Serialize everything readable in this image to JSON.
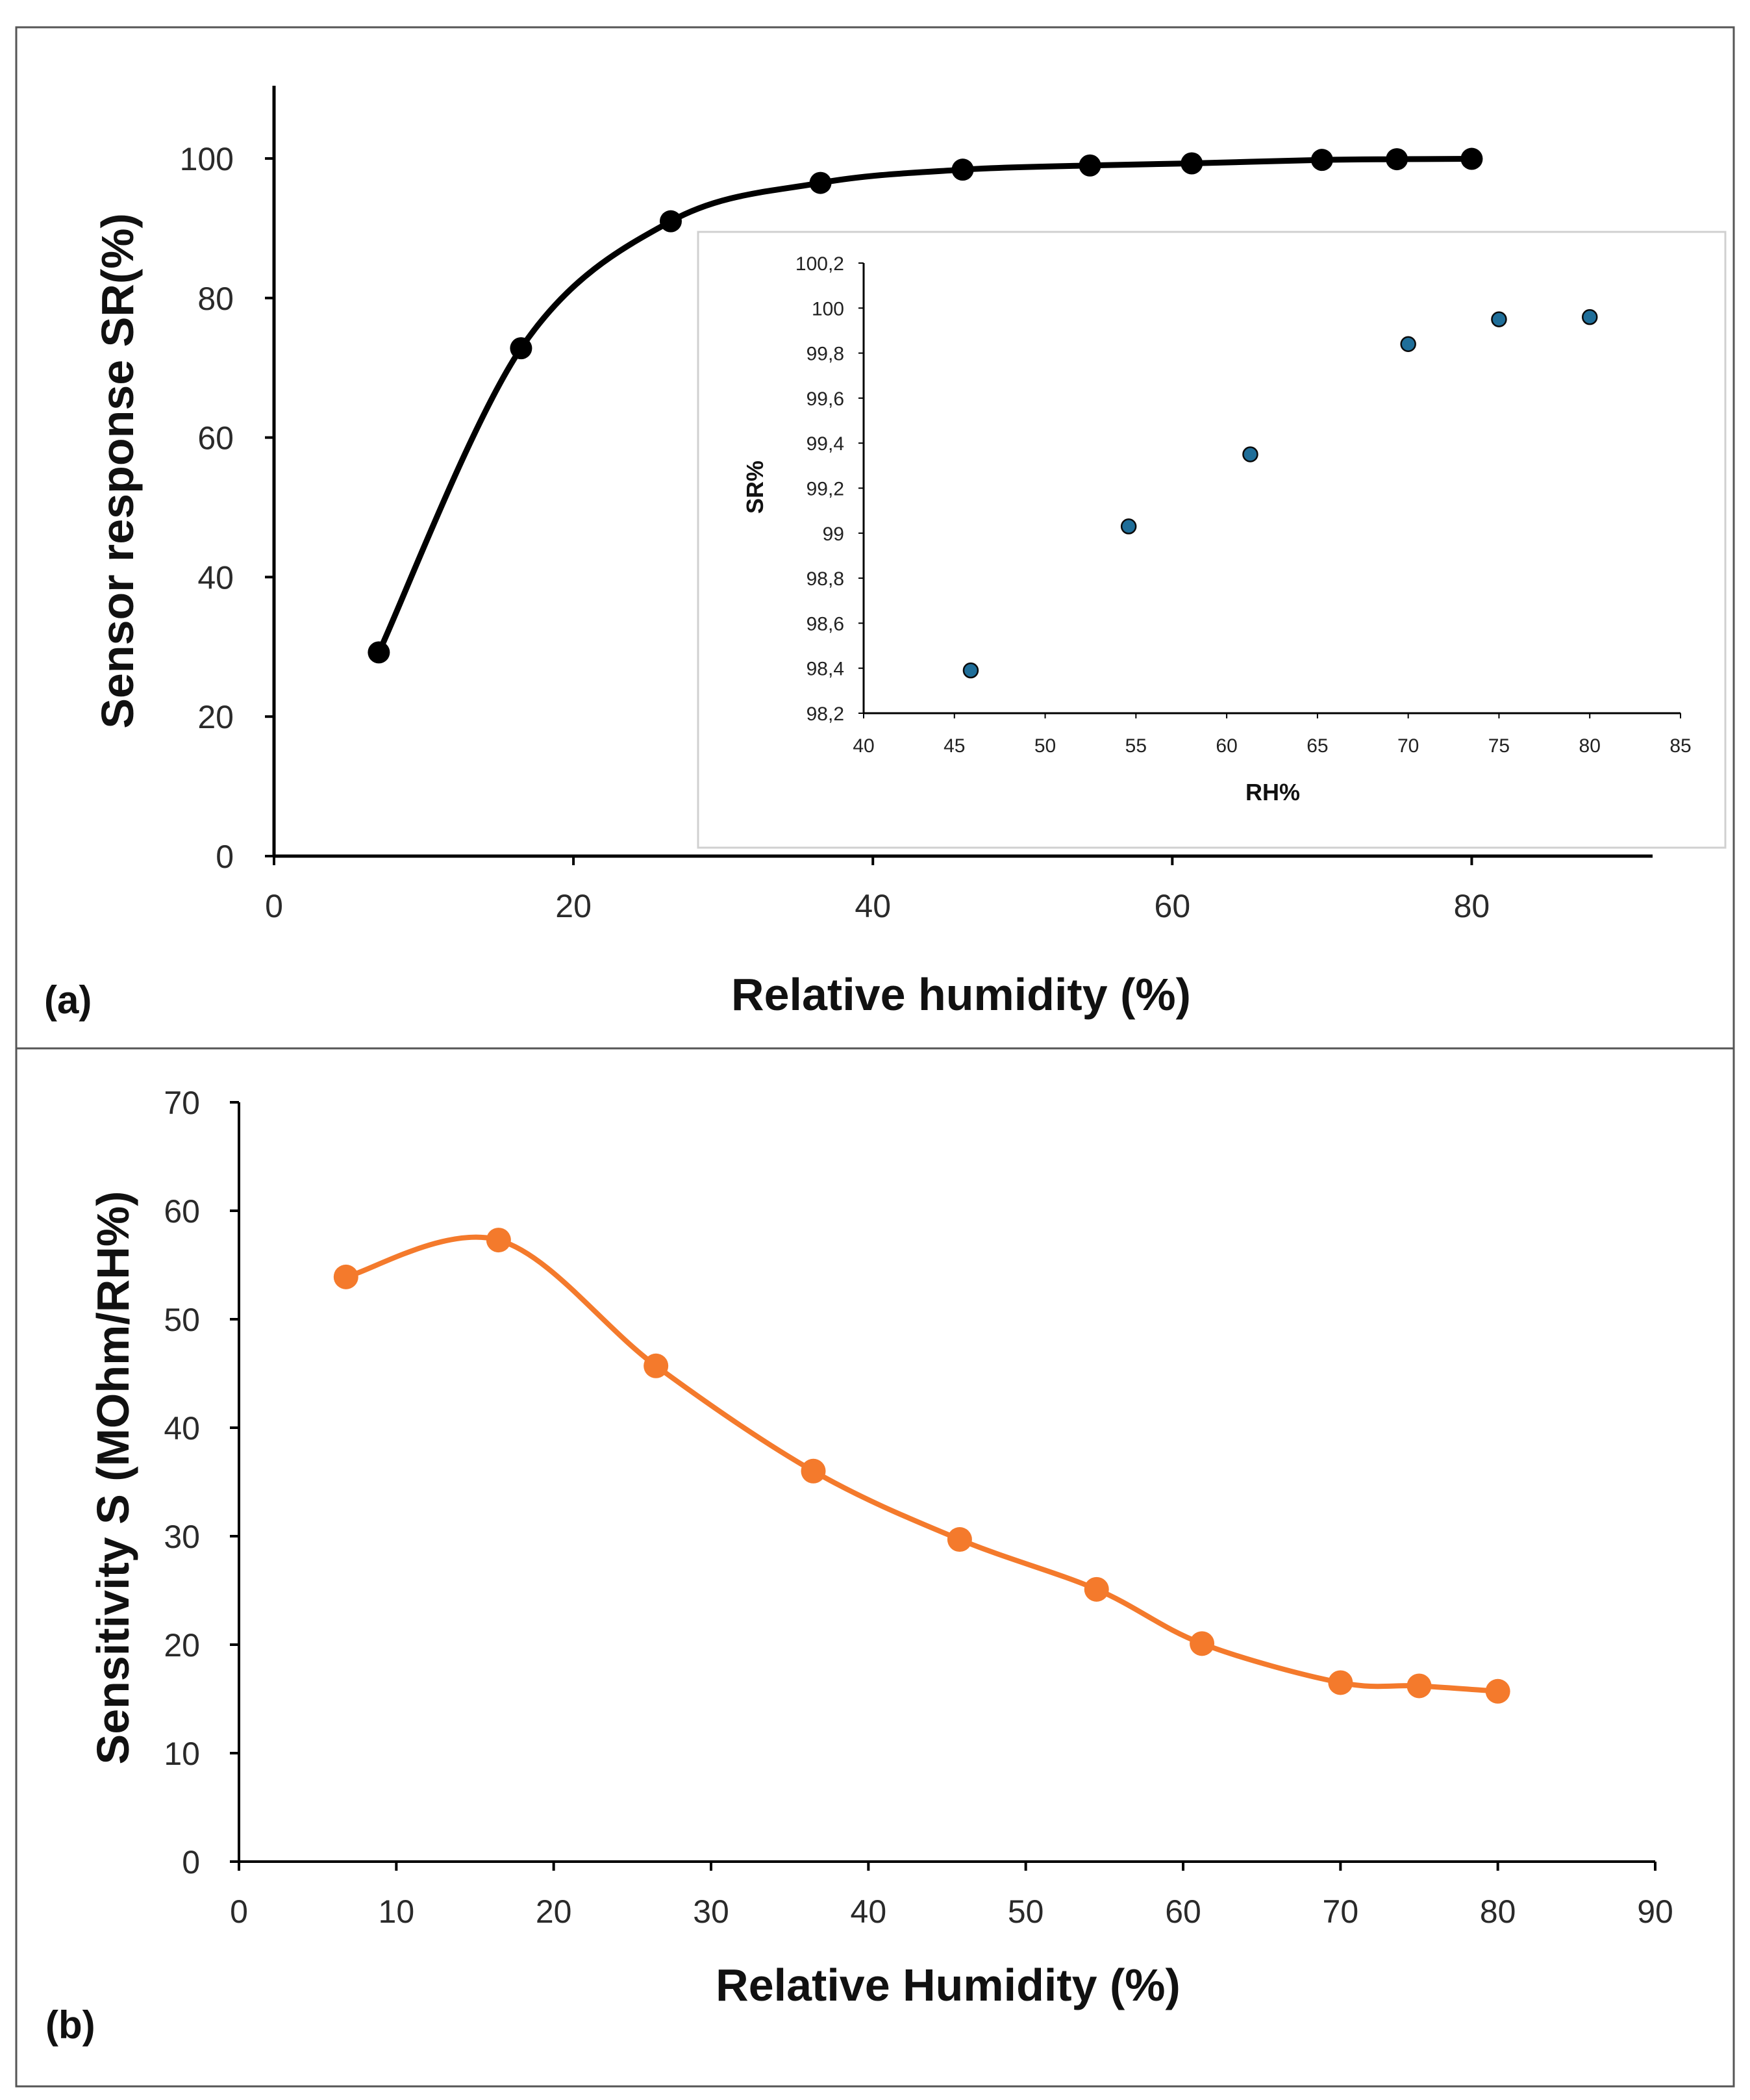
{
  "chart_data": [
    {
      "id": "a",
      "type": "line",
      "panel_label": "(a)",
      "xlabel": "Relative humidity (%)",
      "ylabel": "Sensor response SR(%)",
      "xlim": [
        0,
        90
      ],
      "ylim": [
        0,
        110
      ],
      "xticks": [
        "0",
        "20",
        "40",
        "60",
        "80"
      ],
      "yticks": [
        "0",
        "20",
        "40",
        "60",
        "80",
        "100"
      ],
      "color": "#000000",
      "series": [
        {
          "name": "SR",
          "x": [
            7,
            16.5,
            26.5,
            36.5,
            46,
            54.5,
            61.3,
            70,
            75,
            80
          ],
          "y": [
            29.2,
            72.8,
            91.0,
            96.5,
            98.4,
            99.0,
            99.3,
            99.8,
            99.9,
            99.95
          ]
        }
      ],
      "inset": {
        "type": "scatter",
        "xlabel": "RH%",
        "ylabel": "SR%",
        "xlim": [
          40,
          85
        ],
        "ylim": [
          98.2,
          100.2
        ],
        "xticks": [
          "40",
          "45",
          "50",
          "55",
          "60",
          "65",
          "70",
          "75",
          "80",
          "85"
        ],
        "yticks": [
          "98,2",
          "98,4",
          "98,6",
          "98,8",
          "99",
          "99,2",
          "99,4",
          "99,6",
          "99,8",
          "100",
          "100,2"
        ],
        "color": "#1f6e99",
        "x": [
          45.9,
          54.6,
          61.3,
          70,
          75,
          80
        ],
        "y": [
          98.39,
          99.03,
          99.35,
          99.84,
          99.95,
          99.96
        ]
      }
    },
    {
      "id": "b",
      "type": "line",
      "panel_label": "(b)",
      "xlabel": "Relative Humidity (%)",
      "ylabel": "Sensitivity S (MOhm/RH%)",
      "xlim": [
        0,
        90
      ],
      "ylim": [
        0,
        70
      ],
      "xticks": [
        "0",
        "10",
        "20",
        "30",
        "40",
        "50",
        "60",
        "70",
        "80",
        "90"
      ],
      "yticks": [
        "0",
        "10",
        "20",
        "30",
        "40",
        "50",
        "60",
        "70"
      ],
      "color": "#f47a2c",
      "series": [
        {
          "name": "S",
          "x": [
            6.8,
            16.5,
            26.5,
            36.5,
            45.8,
            54.5,
            61.2,
            70,
            75,
            80
          ],
          "y": [
            53.9,
            57.3,
            45.7,
            36.0,
            29.7,
            25.1,
            20.1,
            16.5,
            16.2,
            15.7
          ]
        }
      ]
    }
  ]
}
